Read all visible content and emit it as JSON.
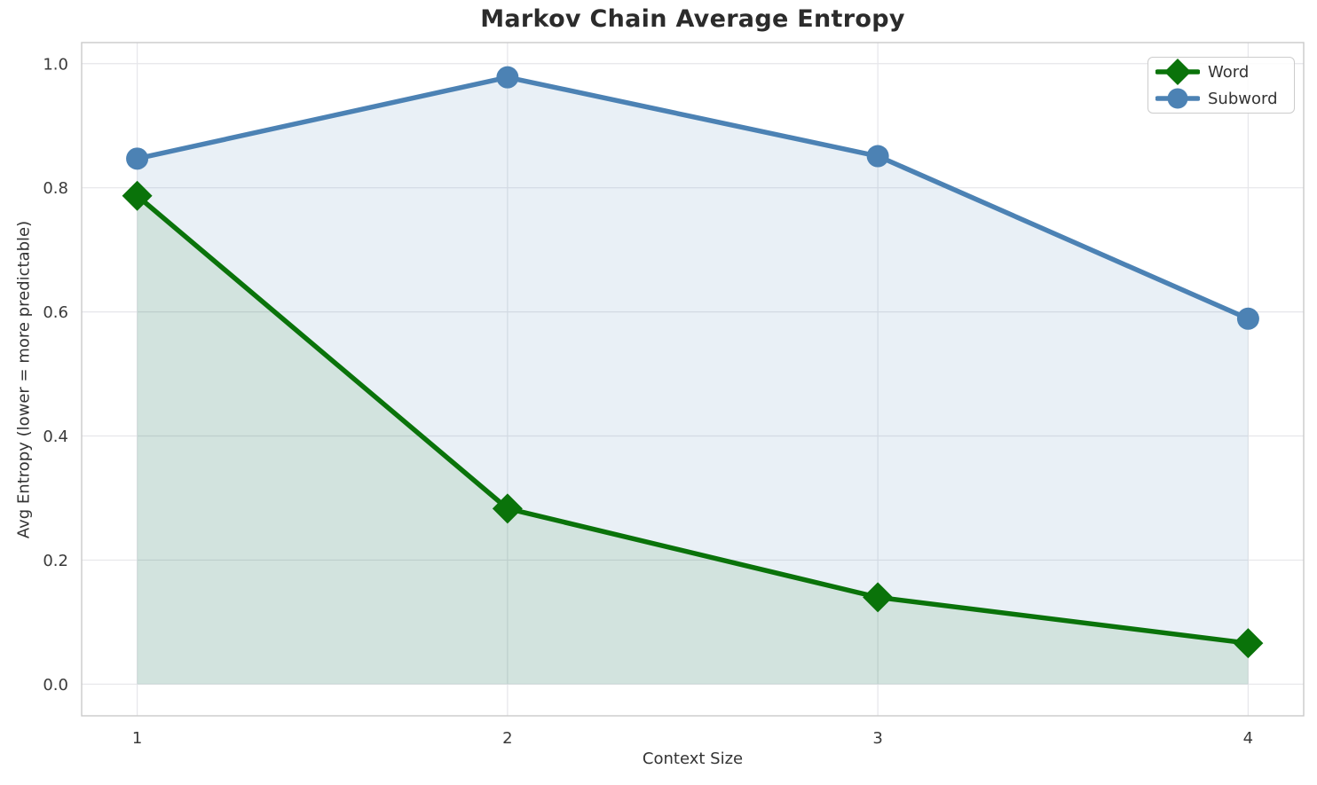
{
  "chart_data": {
    "type": "line",
    "title": "Markov Chain Average Entropy",
    "xlabel": "Context Size",
    "ylabel": "Avg Entropy (lower = more predictable)",
    "x": [
      1,
      2,
      3,
      4
    ],
    "x_tick_labels": [
      "1",
      "2",
      "3",
      "4"
    ],
    "y_ticks": [
      0.0,
      0.2,
      0.4,
      0.6,
      0.8,
      1.0
    ],
    "y_tick_labels": [
      "0.0",
      "0.2",
      "0.4",
      "0.6",
      "0.8",
      "1.0"
    ],
    "xlim": [
      0.85,
      4.15
    ],
    "ylim": [
      -0.051,
      1.034
    ],
    "grid": true,
    "legend_position": "upper right",
    "series": [
      {
        "name": "Word",
        "marker": "diamond",
        "color": "#0a730a",
        "fill_opacity": 0.1,
        "fill_to_zero": true,
        "values": [
          0.787,
          0.283,
          0.14,
          0.066
        ]
      },
      {
        "name": "Subword",
        "marker": "circle",
        "color": "#4c82b4",
        "fill_opacity": 0.12,
        "fill_to_zero": true,
        "values": [
          0.847,
          0.978,
          0.851,
          0.589
        ]
      }
    ]
  }
}
